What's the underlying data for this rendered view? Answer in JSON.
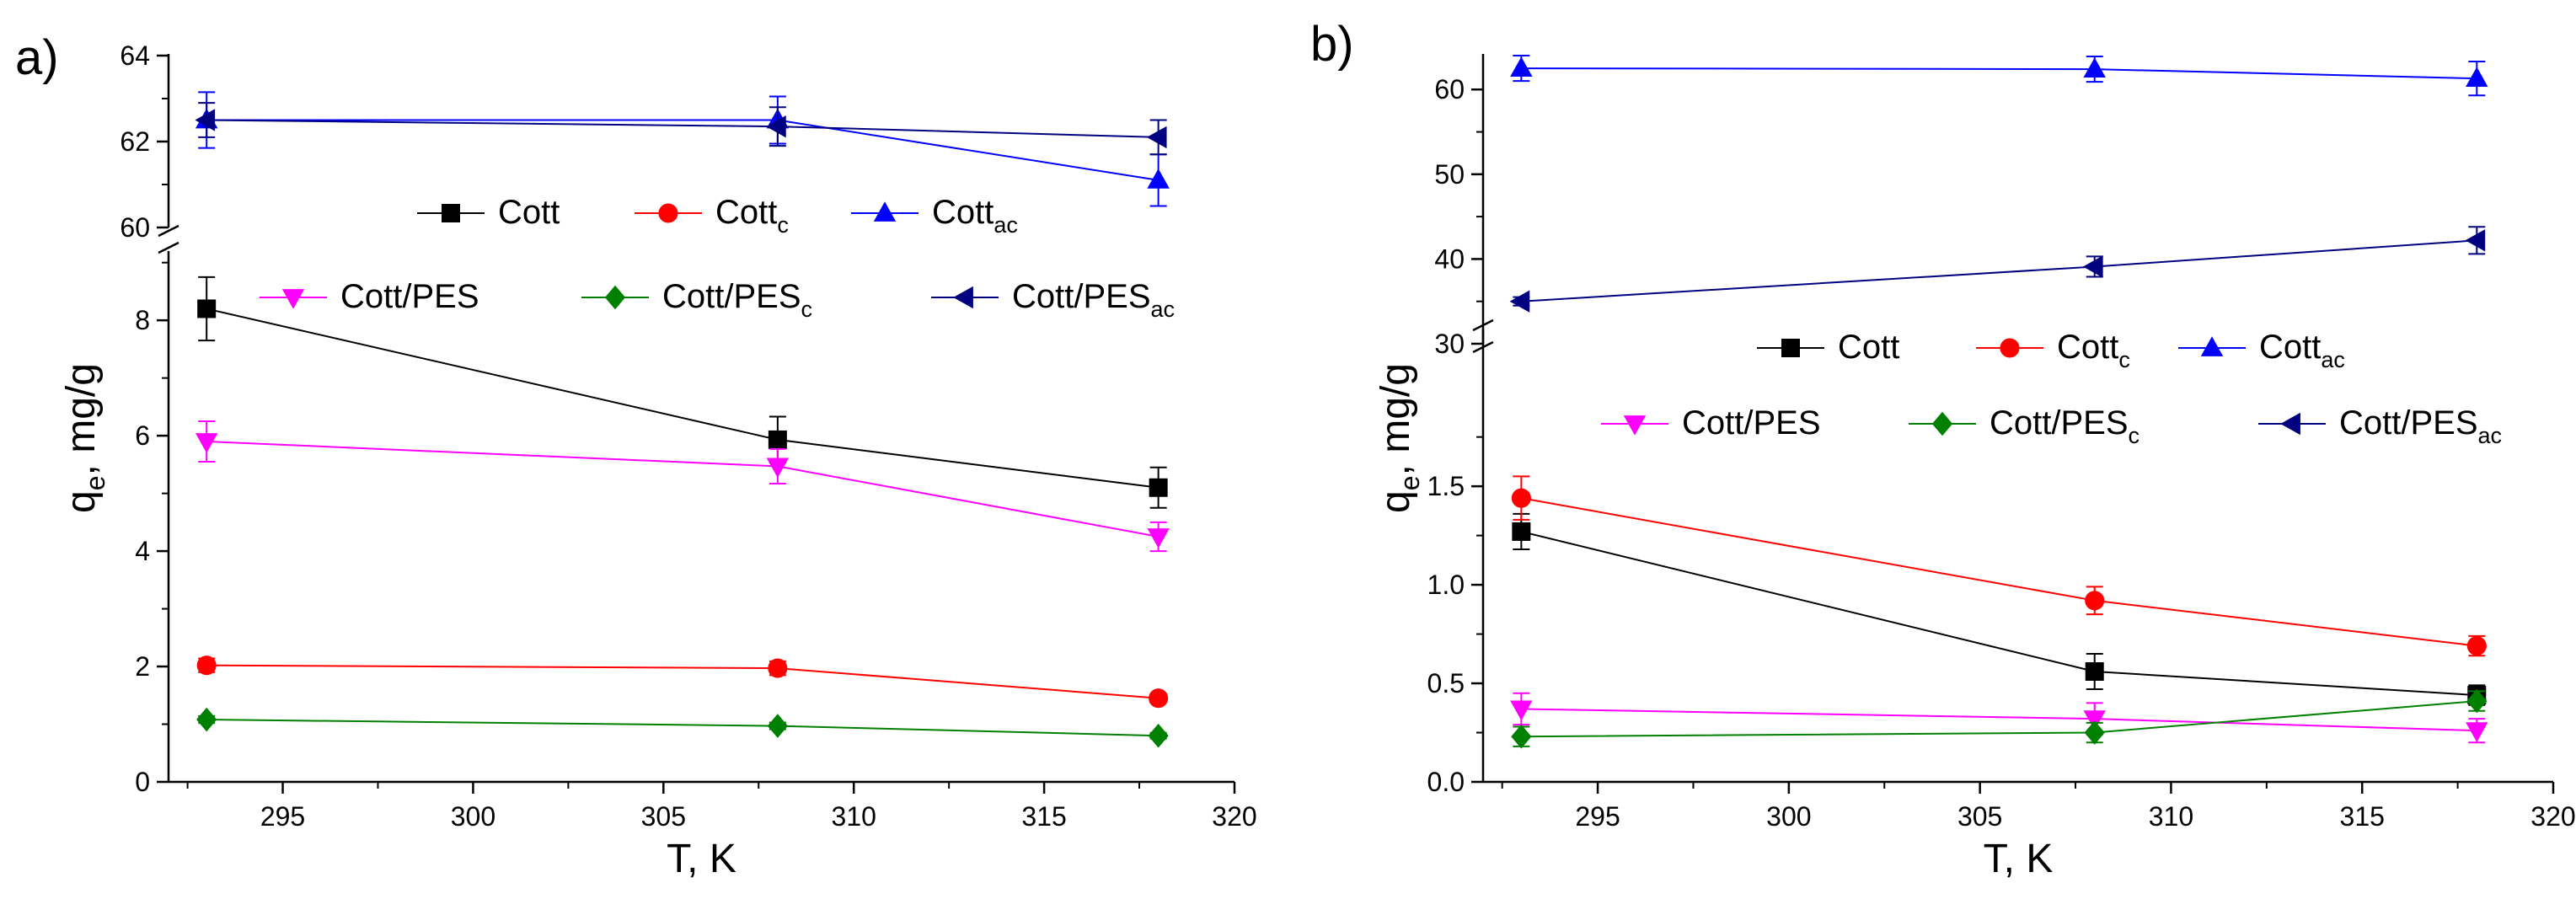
{
  "figure": {
    "panel_labels": [
      "a)",
      "b)"
    ]
  },
  "chart_data": [
    {
      "type": "line",
      "panel": "a)",
      "xlabel": "T, K",
      "ylabel": "q",
      "ylabel_sub": "e",
      "ylabel_rest": ", mg/g",
      "x": [
        293,
        308,
        318
      ],
      "xlim": [
        292,
        320
      ],
      "x_ticks": [
        "295",
        "300",
        "305",
        "310",
        "315",
        "320"
      ],
      "y_break": true,
      "ylim_lower": [
        0,
        9.2
      ],
      "ylim_upper": [
        60,
        64
      ],
      "y_ticks_lower": [
        "0",
        "2",
        "4",
        "6",
        "8"
      ],
      "y_ticks_upper": [
        "60",
        "62",
        "64"
      ],
      "series": [
        {
          "name": "Cott",
          "sub": "",
          "color": "#000000",
          "marker": "square",
          "values": [
            8.2,
            5.93,
            5.1
          ],
          "errors": [
            0.55,
            0.4,
            0.35
          ]
        },
        {
          "name": "Cott",
          "sub": "c",
          "color": "#ff0000",
          "marker": "circle",
          "values": [
            2.02,
            1.97,
            1.45
          ],
          "errors": [
            0.12,
            0.12,
            0.08
          ]
        },
        {
          "name": "Cott",
          "sub": "ac",
          "color": "#0000ff",
          "marker": "triangle-up",
          "values": [
            62.5,
            62.5,
            61.1
          ],
          "errors": [
            0.65,
            0.55,
            0.6
          ]
        },
        {
          "name": "Cott/PES",
          "sub": "",
          "color": "#ff00ff",
          "marker": "triangle-down",
          "values": [
            5.9,
            5.47,
            4.25
          ],
          "errors": [
            0.35,
            0.3,
            0.25
          ]
        },
        {
          "name": "Cott/PES",
          "sub": "c",
          "color": "#008000",
          "marker": "diamond",
          "values": [
            1.08,
            0.97,
            0.8
          ],
          "errors": [
            0.06,
            0.06,
            0.05
          ]
        },
        {
          "name": "Cott/PES",
          "sub": "ac",
          "color": "#000080",
          "marker": "triangle-left",
          "values": [
            62.5,
            62.35,
            62.1
          ],
          "errors": [
            0.4,
            0.45,
            0.4
          ]
        }
      ]
    },
    {
      "type": "line",
      "panel": "b)",
      "xlabel": "T, K",
      "ylabel": "q",
      "ylabel_sub": "e",
      "ylabel_rest": ", mg/g",
      "x": [
        293,
        308,
        318
      ],
      "xlim": [
        292,
        320
      ],
      "x_ticks": [
        "295",
        "300",
        "305",
        "310",
        "315",
        "320"
      ],
      "y_break": true,
      "ylim_lower": [
        0,
        2.3
      ],
      "ylim_upper": [
        30,
        64
      ],
      "y_ticks_lower": [
        "0.0",
        "0.5",
        "1.0",
        "1.5"
      ],
      "y_ticks_upper": [
        "30",
        "40",
        "50",
        "60"
      ],
      "series": [
        {
          "name": "Cott",
          "sub": "",
          "color": "#000000",
          "marker": "square",
          "values": [
            1.27,
            0.56,
            0.44
          ],
          "errors": [
            0.09,
            0.09,
            0.05
          ]
        },
        {
          "name": "Cott",
          "sub": "c",
          "color": "#ff0000",
          "marker": "circle",
          "values": [
            1.44,
            0.92,
            0.69
          ],
          "errors": [
            0.11,
            0.07,
            0.05
          ]
        },
        {
          "name": "Cott",
          "sub": "ac",
          "color": "#0000ff",
          "marker": "triangle-up",
          "values": [
            62.5,
            62.4,
            61.3
          ],
          "errors": [
            1.5,
            1.5,
            2.0
          ]
        },
        {
          "name": "Cott/PES",
          "sub": "",
          "color": "#ff00ff",
          "marker": "triangle-down",
          "values": [
            0.37,
            0.32,
            0.26
          ],
          "errors": [
            0.08,
            0.08,
            0.06
          ]
        },
        {
          "name": "Cott/PES",
          "sub": "c",
          "color": "#008000",
          "marker": "diamond",
          "values": [
            0.23,
            0.25,
            0.41
          ],
          "errors": [
            0.05,
            0.05,
            0.05
          ]
        },
        {
          "name": "Cott/PES",
          "sub": "ac",
          "color": "#000080",
          "marker": "triangle-left",
          "values": [
            35.0,
            39.1,
            42.2
          ],
          "errors": [
            0.5,
            1.2,
            1.6
          ]
        }
      ]
    }
  ]
}
